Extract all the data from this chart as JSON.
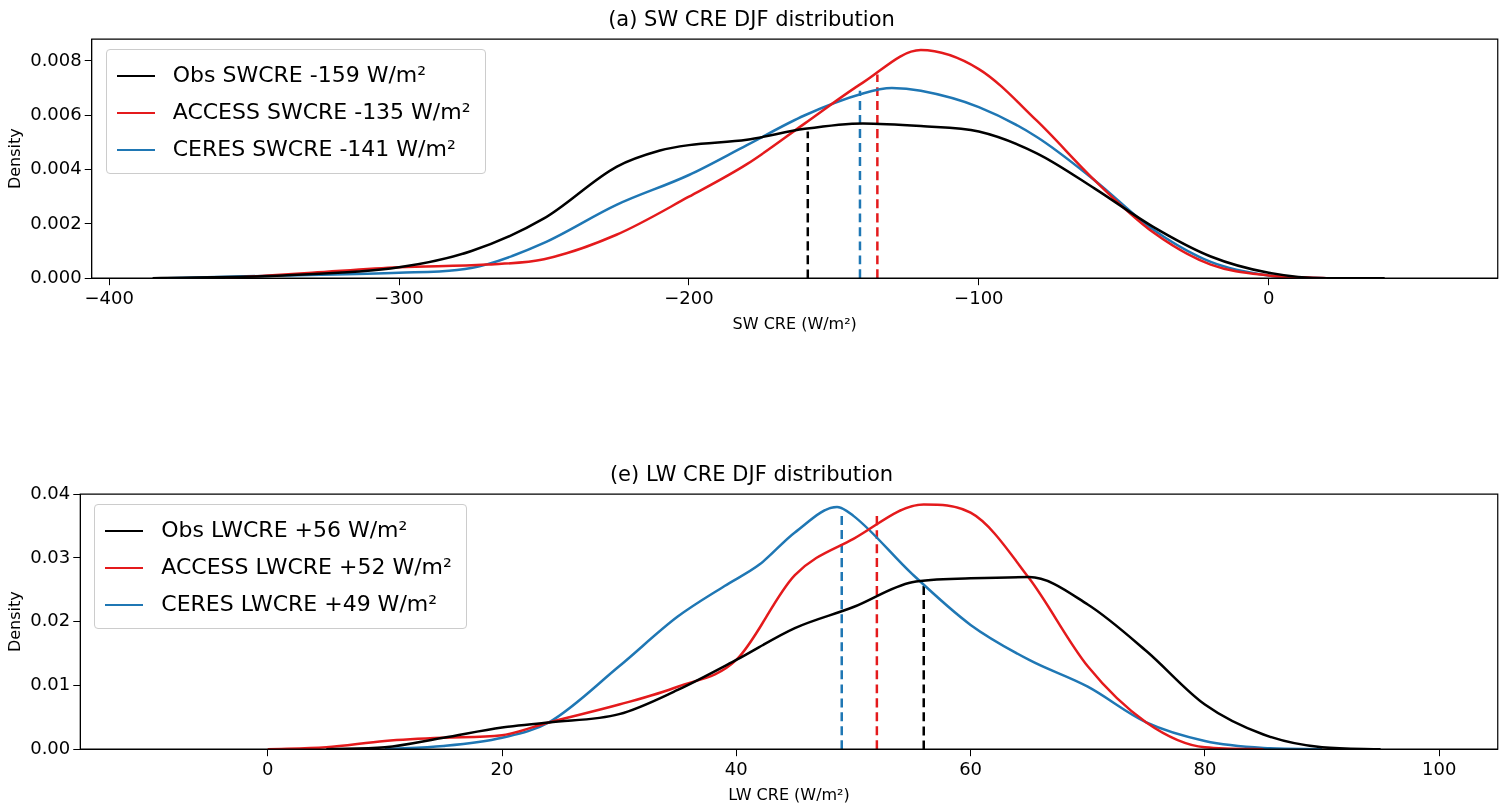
{
  "chart_data": [
    {
      "type": "line",
      "title": "(a) SW CRE DJF distribution",
      "xlabel": "SW CRE (W/m²)",
      "ylabel": "Density",
      "legend": "top left",
      "grid": false,
      "marker": "none",
      "xlim": [
        -406,
        79
      ],
      "ylim": [
        0,
        0.0088
      ],
      "xticks": [
        {
          "value": -400,
          "label": "−400"
        },
        {
          "value": -300,
          "label": "−300"
        },
        {
          "value": -200,
          "label": "−200"
        },
        {
          "value": -100,
          "label": "−100"
        },
        {
          "value": 0,
          "label": "0"
        }
      ],
      "yticks": [
        {
          "value": 0,
          "label": "0.000"
        },
        {
          "value": 0.002,
          "label": "0.002"
        },
        {
          "value": 0.004,
          "label": "0.004"
        },
        {
          "value": 0.006,
          "label": "0.006"
        },
        {
          "value": 0.008,
          "label": "0.008"
        }
      ],
      "series": [
        {
          "name": "Obs SWCRE -159 W/m²",
          "color": "#000000",
          "x": [
            -385,
            -340,
            -300,
            -275,
            -250,
            -225,
            -210,
            -200,
            -180,
            -160,
            -140,
            -120,
            -100,
            -80,
            -60,
            -40,
            -20,
            0,
            20,
            40
          ],
          "values": [
            0,
            0.0001,
            0.0004,
            0.001,
            0.0022,
            0.0041,
            0.0047,
            0.0049,
            0.0051,
            0.0055,
            0.0057,
            0.0056,
            0.0054,
            0.0046,
            0.0033,
            0.0019,
            0.0008,
            0.0002,
            0,
            0
          ]
        },
        {
          "name": "ACCESS SWCRE -135 W/m²",
          "color": "#e41a1c",
          "x": [
            -360,
            -330,
            -300,
            -270,
            -250,
            -225,
            -200,
            -180,
            -160,
            -140,
            -120,
            -100,
            -80,
            -60,
            -40,
            -20,
            0,
            20
          ],
          "values": [
            0,
            0.0002,
            0.0004,
            0.0005,
            0.0007,
            0.0016,
            0.003,
            0.0042,
            0.0057,
            0.0072,
            0.0084,
            0.0077,
            0.0058,
            0.0036,
            0.0017,
            0.0005,
            0.0001,
            0
          ]
        },
        {
          "name": "CERES SWCRE -141 W/m²",
          "color": "#1f77b4",
          "x": [
            -380,
            -340,
            -300,
            -280,
            -270,
            -250,
            -225,
            -200,
            -180,
            -160,
            -140,
            -130,
            -120,
            -100,
            -80,
            -60,
            -40,
            -20,
            0,
            20
          ],
          "values": [
            0,
            0.0001,
            0.0002,
            0.0003,
            0.0005,
            0.0013,
            0.0027,
            0.0038,
            0.0049,
            0.006,
            0.0068,
            0.007,
            0.0069,
            0.0063,
            0.0052,
            0.0036,
            0.0018,
            0.0006,
            0.0001,
            0
          ]
        },
        {
          "type": "line",
          "line_style": "dashed",
          "color": "#000000",
          "x": [
            -159,
            -159
          ],
          "values": [
            0,
            0.0054
          ]
        },
        {
          "type": "line",
          "line_style": "dashed",
          "color": "#1f77b4",
          "x": [
            -141,
            -141
          ],
          "values": [
            0,
            0.0069
          ]
        },
        {
          "type": "line",
          "line_style": "dashed",
          "color": "#e41a1c",
          "x": [
            -135,
            -135
          ],
          "values": [
            0,
            0.0075
          ]
        }
      ]
    },
    {
      "type": "line",
      "title": "(e) LW CRE DJF distribution",
      "xlabel": "LW CRE (W/m²)",
      "ylabel": "Density",
      "legend": "top left",
      "grid": false,
      "marker": "none",
      "xlim": [
        -16,
        105
      ],
      "ylim": [
        0,
        0.04
      ],
      "xticks": [
        0,
        20,
        40,
        60,
        80,
        100
      ],
      "yticks": [
        {
          "value": 0,
          "label": "0.00"
        },
        {
          "value": 0.01,
          "label": "0.01"
        },
        {
          "value": 0.02,
          "label": "0.02"
        },
        {
          "value": 0.03,
          "label": "0.03"
        },
        {
          "value": 0.04,
          "label": "0.04"
        }
      ],
      "series": [
        {
          "name": "Obs LWCRE +56 W/m²",
          "color": "#000000",
          "x": [
            5,
            10,
            15,
            20,
            24,
            30,
            35,
            40,
            45,
            50,
            55,
            60,
            65,
            70,
            75,
            80,
            85,
            90,
            95
          ],
          "values": [
            0,
            0.0003,
            0.0018,
            0.0034,
            0.0042,
            0.0055,
            0.0093,
            0.014,
            0.019,
            0.0223,
            0.0262,
            0.0268,
            0.027,
            0.0227,
            0.0154,
            0.007,
            0.0023,
            0.0003,
            0
          ]
        },
        {
          "name": "ACCESS LWCRE +52 W/m²",
          "color": "#e41a1c",
          "x": [
            0,
            5,
            10,
            15,
            20,
            24,
            30,
            35,
            40,
            45,
            50,
            56,
            60,
            65,
            70,
            75,
            80,
            85
          ],
          "values": [
            0,
            0.0003,
            0.0013,
            0.0018,
            0.0022,
            0.0042,
            0.007,
            0.0098,
            0.014,
            0.0273,
            0.033,
            0.0384,
            0.0371,
            0.0268,
            0.013,
            0.0042,
            0.0003,
            0
          ]
        },
        {
          "name": "CERES LWCRE +49 W/m²",
          "color": "#1f77b4",
          "x": [
            10,
            15,
            20,
            24,
            30,
            35,
            39,
            42,
            45,
            48.6,
            50,
            55,
            60,
            65,
            70,
            75,
            80,
            85,
            90
          ],
          "values": [
            0,
            0.0005,
            0.0018,
            0.0042,
            0.013,
            0.0208,
            0.0256,
            0.029,
            0.034,
            0.038,
            0.0366,
            0.0275,
            0.0195,
            0.014,
            0.0098,
            0.0042,
            0.0013,
            0.0002,
            0
          ]
        },
        {
          "type": "line",
          "line_style": "dashed",
          "color": "#1f77b4",
          "x": [
            49,
            49
          ],
          "values": [
            0,
            0.0371
          ]
        },
        {
          "type": "line",
          "line_style": "dashed",
          "color": "#e41a1c",
          "x": [
            52,
            52
          ],
          "values": [
            0,
            0.0366
          ]
        },
        {
          "type": "line",
          "line_style": "dashed",
          "color": "#000000",
          "x": [
            56,
            56
          ],
          "values": [
            0,
            0.0264
          ]
        }
      ]
    }
  ]
}
